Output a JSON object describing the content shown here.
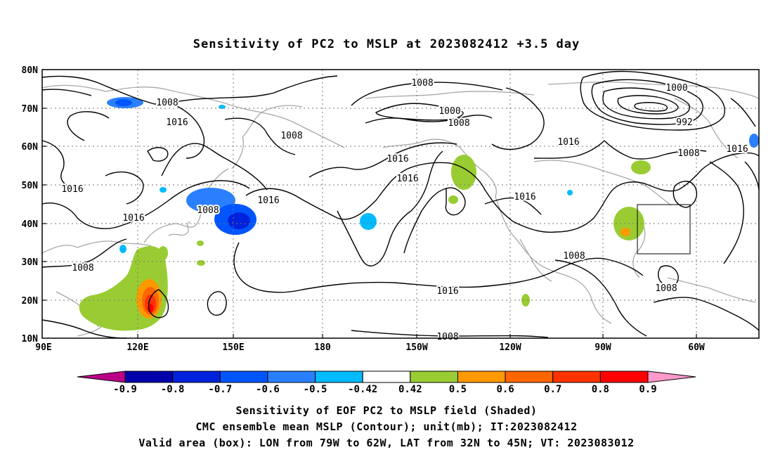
{
  "title": "Sensitivity of PC2 to MSLP at 2023082412 +3.5 day",
  "map": {
    "lon_labels": [
      "90E",
      "120E",
      "150E",
      "180",
      "150W",
      "120W",
      "90W",
      "60W"
    ],
    "lat_labels": [
      "80N",
      "70N",
      "60N",
      "50N",
      "40N",
      "30N",
      "20N",
      "10N"
    ],
    "contour_labels": [
      "1008",
      "1016",
      "1016",
      "1008",
      "1016",
      "1008",
      "1016",
      "1016",
      "1016",
      "1008",
      "1008",
      "1000",
      "1008",
      "1016",
      "1016",
      "1008",
      "1016",
      "1008",
      "1000",
      "992",
      "1008",
      "1016",
      "1008",
      "1008"
    ],
    "valid_area_box": {
      "lon_min": -79,
      "lon_max": -62,
      "lat_min": 32,
      "lat_max": 45
    }
  },
  "colorbar": {
    "labels": [
      "-0.9",
      "-0.8",
      "-0.7",
      "-0.6",
      "-0.5",
      "-0.42",
      "0.42",
      "0.5",
      "0.6",
      "0.7",
      "0.8",
      "0.9"
    ],
    "colors": [
      "#bb0088",
      "#0000aa",
      "#0022dd",
      "#0055ff",
      "#2a7fff",
      "#00bbff",
      "#ffffff",
      "#99cc33",
      "#ff9900",
      "#ff6600",
      "#ff3300",
      "#ff0000",
      "#ff99cc"
    ]
  },
  "footer": {
    "line1": "Sensitivity of EOF PC2 to MSLP field (Shaded)",
    "line2": "CMC ensemble mean MSLP (Contour); unit(mb); IT:2023082412",
    "line3": "Valid area (box): LON from 79W to 62W, LAT from 32N to 45N; VT: 2023083012"
  }
}
